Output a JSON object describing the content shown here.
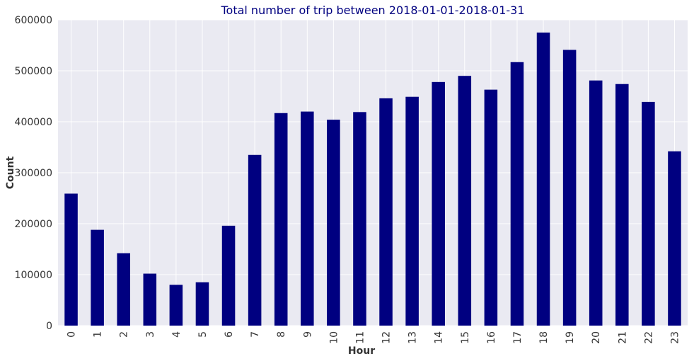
{
  "chart_data": {
    "type": "bar",
    "title": "Total number of trip between 2018-01-01-2018-01-31",
    "xlabel": "Hour",
    "ylabel": "Count",
    "categories": [
      "0",
      "1",
      "2",
      "3",
      "4",
      "5",
      "6",
      "7",
      "8",
      "9",
      "10",
      "11",
      "12",
      "13",
      "14",
      "15",
      "16",
      "17",
      "18",
      "19",
      "20",
      "21",
      "22",
      "23"
    ],
    "values": [
      259000,
      188000,
      142000,
      102000,
      80000,
      85000,
      196000,
      335000,
      417000,
      420000,
      404000,
      419000,
      446000,
      449000,
      478000,
      490000,
      463000,
      517000,
      575000,
      541000,
      481000,
      474000,
      439000,
      342000
    ],
    "ylim": [
      0,
      600000
    ],
    "yticks": [
      "0",
      "100000",
      "200000",
      "300000",
      "400000",
      "500000",
      "600000"
    ],
    "grid": true,
    "x_tick_rotation": "vertical",
    "colors": {
      "bar": "#000080",
      "plot_background": "#eaeaf2",
      "grid": "#ffffff",
      "title": "#000080",
      "text": "#333333"
    }
  }
}
